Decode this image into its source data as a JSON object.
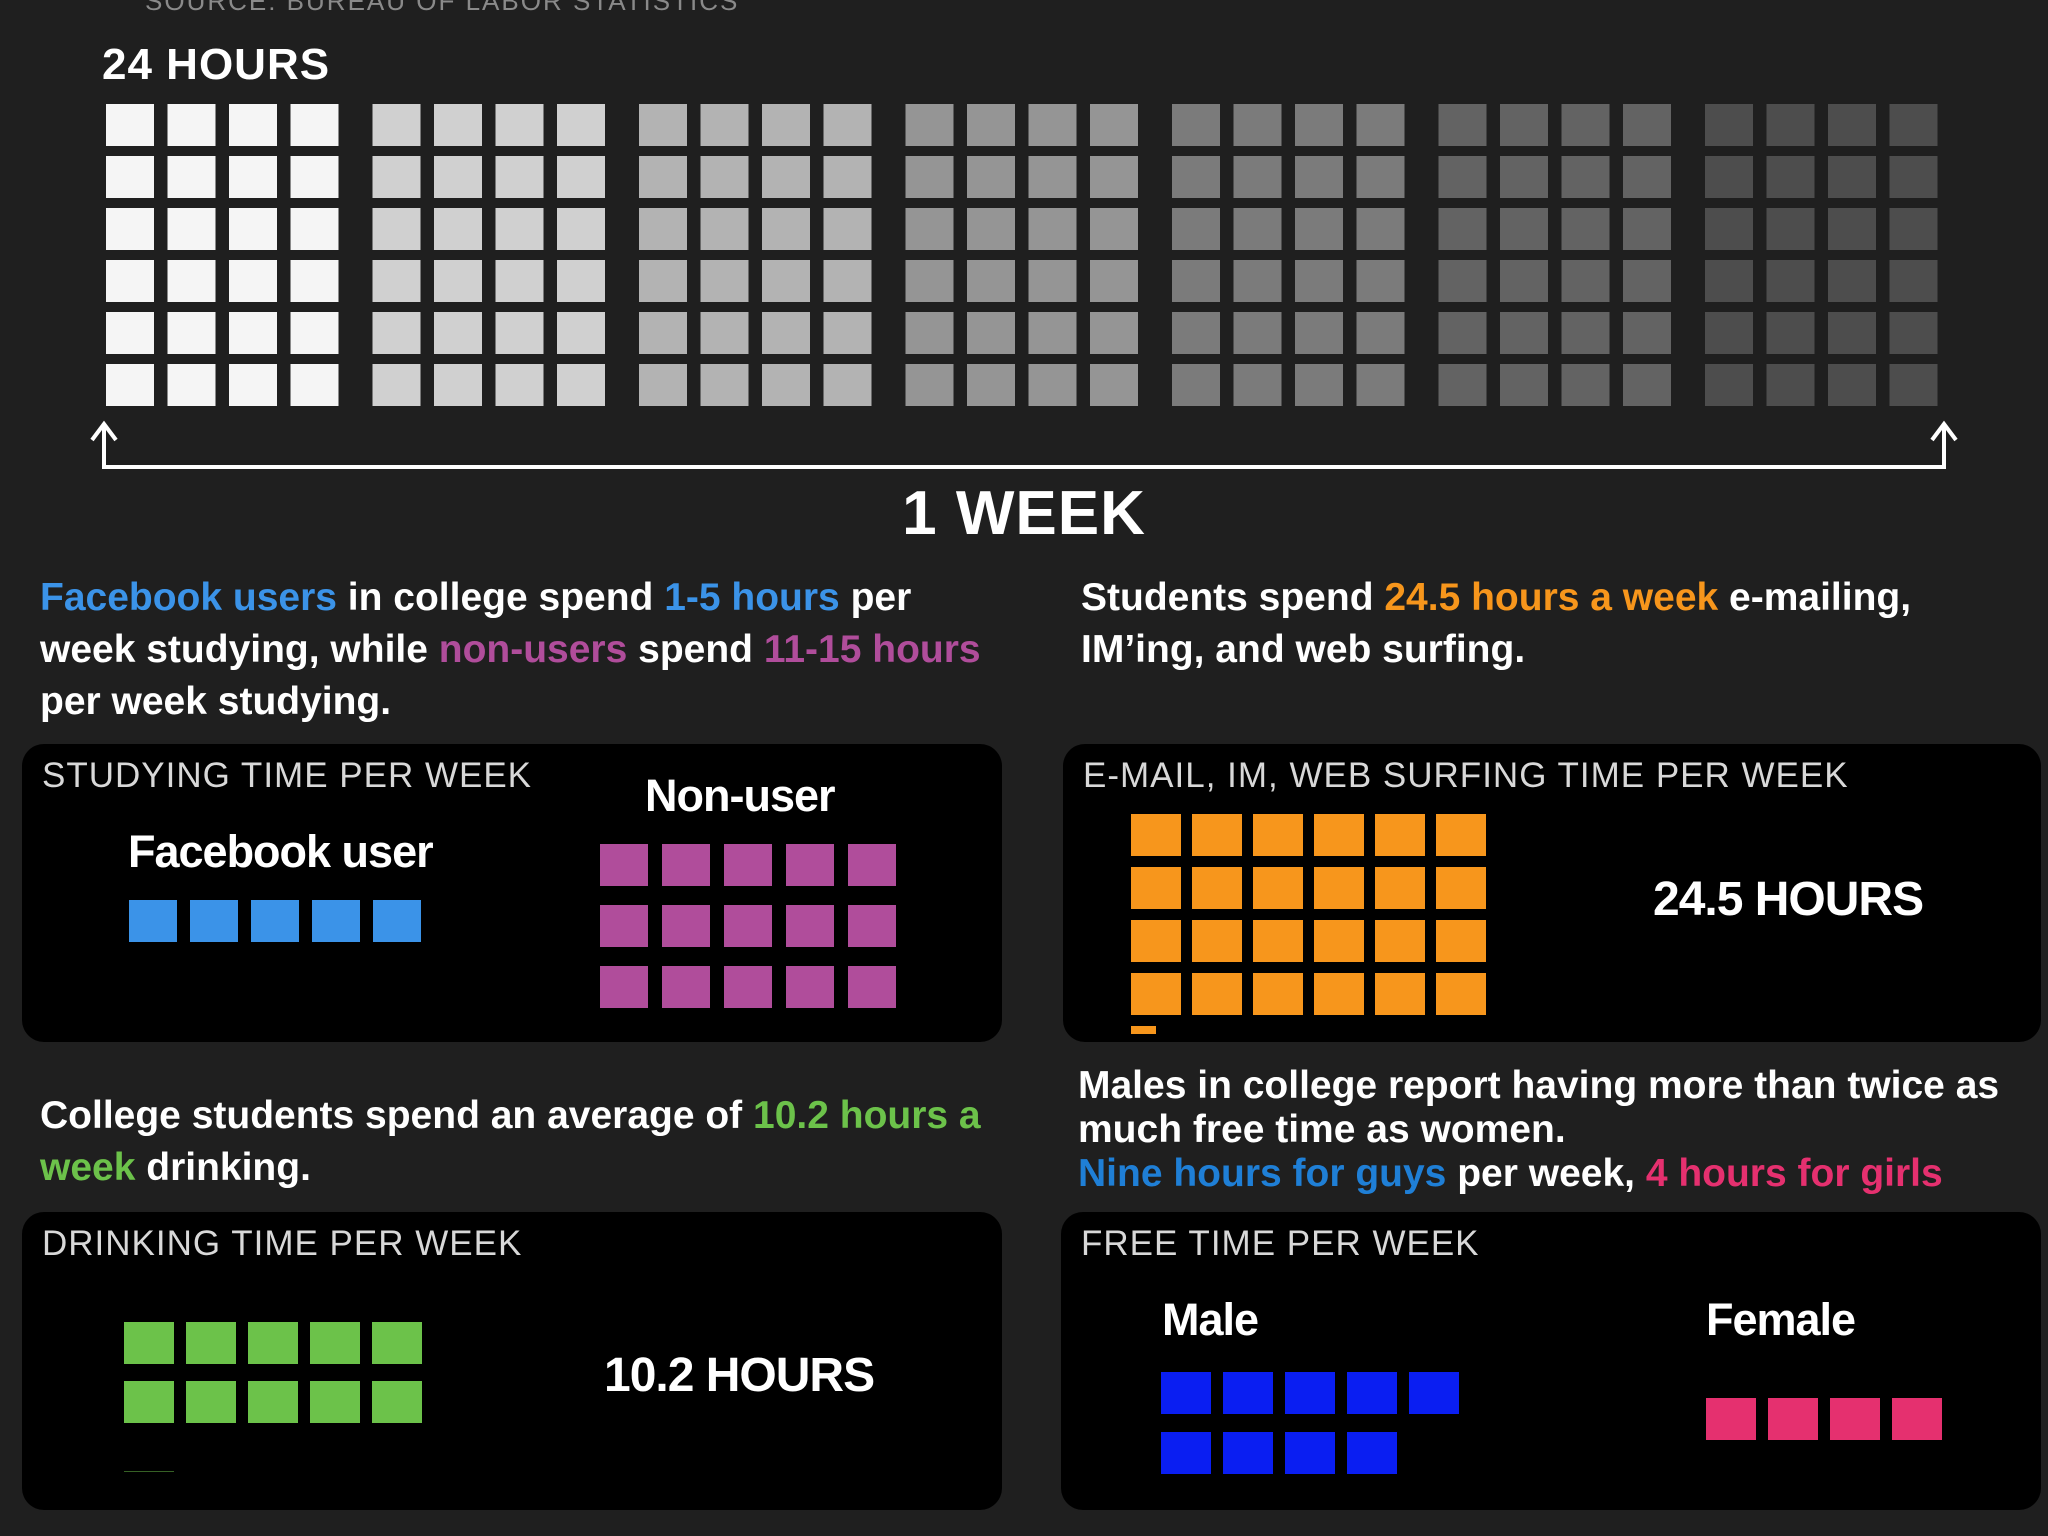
{
  "header": {
    "source": "SOURCE: BUREAU OF LABOR STATISTICS",
    "day_label": "24 HOURS",
    "week_label": "1 WEEK"
  },
  "colors": {
    "facebook_blue": "#3b93e8",
    "nonuser_purple": "#b04d9b",
    "email_orange": "#f7961c",
    "drinking_green": "#6cc24a",
    "male_blue": "#0a1ef2",
    "female_pink": "#e5306f",
    "day_shades": [
      "#f5f5f5",
      "#d0d0d0",
      "#b3b3b3",
      "#959595",
      "#7b7b7b",
      "#636363",
      "#4d4d4d"
    ]
  },
  "sections": {
    "studying": {
      "caption": [
        {
          "text": "Facebook users",
          "color": "#3b93e8"
        },
        {
          "text": " in college spend "
        },
        {
          "text": "1-5 hours",
          "color": "#3b93e8"
        },
        {
          "text": " per week studying, while "
        },
        {
          "text": "non-users",
          "color": "#b04d9b"
        },
        {
          "text": " spend "
        },
        {
          "text": "11-15 hours",
          "color": "#b04d9b"
        },
        {
          "text": " per week studying."
        }
      ],
      "panel_title": "STUDYING TIME PER WEEK",
      "user_label": "Facebook user",
      "nonuser_label": "Non-user"
    },
    "email": {
      "caption": [
        {
          "text": "Students spend "
        },
        {
          "text": "24.5 hours a week",
          "color": "#f7961c"
        },
        {
          "text": " e-mailing, IM’ing, and web surfing."
        }
      ],
      "panel_title": "E-MAIL, IM, WEB SURFING TIME PER WEEK",
      "total_label": "24.5 HOURS"
    },
    "drinking": {
      "caption": [
        {
          "text": "College students spend an average of "
        },
        {
          "text": "10.2 hours a week",
          "color": "#6cc24a"
        },
        {
          "text": " drinking."
        }
      ],
      "panel_title": "DRINKING TIME PER WEEK",
      "total_label": "10.2 HOURS"
    },
    "free_time": {
      "caption": [
        {
          "text": "Males in college report having more than twice as much free time as women."
        },
        {
          "text": "\n"
        },
        {
          "text": "Nine hours for guys",
          "color": "#1f7fd6"
        },
        {
          "text": " per week, "
        },
        {
          "text": "4 hours for girls",
          "color": "#e5306f"
        }
      ],
      "panel_title": "FREE TIME PER WEEK",
      "male_label": "Male",
      "female_label": "Female"
    }
  },
  "chart_data": [
    {
      "type": "waffle",
      "title": "24 HOURS",
      "xlabel": "1 WEEK",
      "unit": "hour",
      "days": 7,
      "hours_per_day": 24,
      "values": [
        24,
        24,
        24,
        24,
        24,
        24,
        24
      ]
    },
    {
      "type": "waffle",
      "title": "STUDYING TIME PER WEEK",
      "unit": "hour",
      "categories": [
        "Facebook user",
        "Non-user"
      ],
      "values": [
        5,
        15
      ]
    },
    {
      "type": "waffle",
      "title": "E-MAIL, IM, WEB SURFING TIME PER WEEK",
      "unit": "hour",
      "categories": [
        "E-mail, IM, web surfing"
      ],
      "values": [
        24.5
      ]
    },
    {
      "type": "waffle",
      "title": "DRINKING TIME PER WEEK",
      "unit": "hour",
      "categories": [
        "Drinking"
      ],
      "values": [
        10.2
      ]
    },
    {
      "type": "waffle",
      "title": "FREE TIME PER WEEK",
      "unit": "hour",
      "categories": [
        "Male",
        "Female"
      ],
      "values": [
        9,
        4
      ]
    }
  ]
}
